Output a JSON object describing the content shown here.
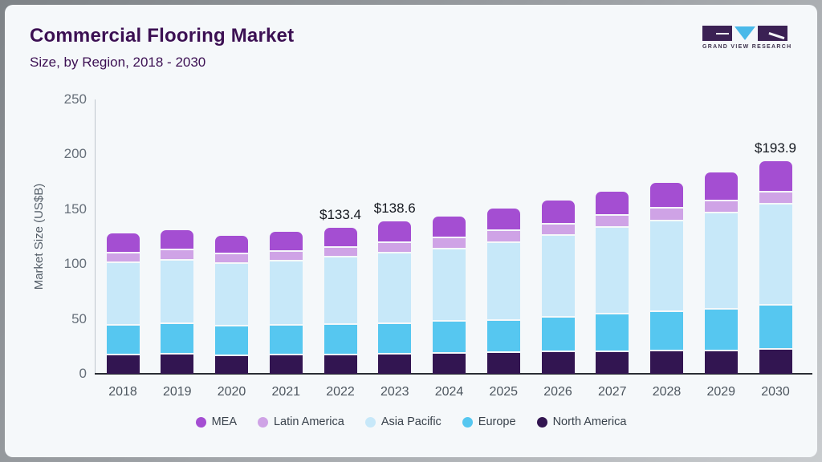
{
  "header": {
    "title": "Commercial Flooring Market",
    "subtitle": "Size, by Region, 2018 - 2030"
  },
  "logo": {
    "text": "GRAND VIEW RESEARCH",
    "mark_dark_color": "#3b2154",
    "mark_triangle_color": "#49b9e9"
  },
  "chart_data": {
    "type": "bar",
    "stacked": true,
    "title": "Commercial Flooring Market Size, by Region, 2018 - 2030",
    "xlabel": "",
    "ylabel": "Market Size (US$B)",
    "ylim": [
      0,
      250
    ],
    "yticks": [
      0,
      50,
      100,
      150,
      200,
      250
    ],
    "grid": false,
    "legend_position": "bottom",
    "categories": [
      "2018",
      "2019",
      "2020",
      "2021",
      "2022",
      "2023",
      "2024",
      "2025",
      "2026",
      "2027",
      "2028",
      "2029",
      "2030"
    ],
    "series": [
      {
        "name": "North America",
        "color": "#321551",
        "values": [
          16.6,
          17.2,
          16.2,
          16.6,
          16.9,
          17.5,
          18.6,
          18.8,
          19.4,
          19.8,
          20.4,
          20.8,
          22.0
        ]
      },
      {
        "name": "Europe",
        "color": "#56c7f0",
        "values": [
          27.4,
          28.0,
          26.6,
          27.2,
          27.6,
          27.9,
          28.7,
          29.8,
          31.8,
          34.5,
          36.2,
          37.9,
          39.8
        ]
      },
      {
        "name": "Asia Pacific",
        "color": "#c7e8f9",
        "values": [
          57.1,
          58.2,
          57.4,
          58.7,
          61.3,
          64.5,
          66.2,
          70.8,
          74.4,
          78.4,
          82.5,
          87.2,
          92.2
        ]
      },
      {
        "name": "Latin America",
        "color": "#cfa3e6",
        "values": [
          8.9,
          9.0,
          8.6,
          8.8,
          9.2,
          8.9,
          10.2,
          10.8,
          10.5,
          11.0,
          11.3,
          10.9,
          11.5
        ]
      },
      {
        "name": "MEA",
        "color": "#a44ed2",
        "values": [
          18.2,
          18.6,
          17.1,
          17.9,
          18.4,
          19.8,
          19.9,
          20.7,
          21.6,
          22.5,
          23.5,
          26.4,
          28.4
        ]
      }
    ],
    "totals": [
      128.2,
      131.0,
      125.9,
      129.2,
      133.4,
      138.6,
      143.6,
      150.9,
      157.7,
      166.2,
      173.9,
      183.2,
      193.9
    ],
    "annotations": [
      {
        "category": "2022",
        "text": "$133.4"
      },
      {
        "category": "2023",
        "text": "$138.6"
      },
      {
        "category": "2030",
        "text": "$193.9"
      }
    ],
    "legend": [
      "MEA",
      "Latin America",
      "Asia Pacific",
      "Europe",
      "North America"
    ]
  },
  "colors": {
    "card_background": "#f5f8fa",
    "title_text": "#3c1053",
    "axis_text": "#666f79",
    "annotation_text": "#14181f",
    "baseline": "#2a2e34"
  }
}
